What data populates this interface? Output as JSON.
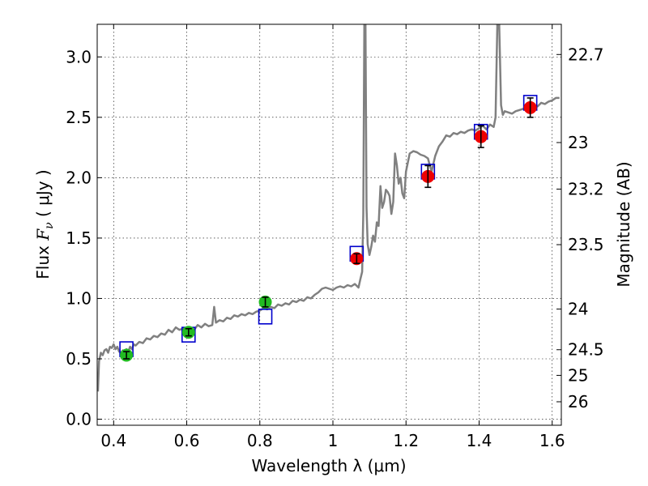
{
  "chart_data": {
    "type": "line",
    "xlabel": "Wavelength  λ (μm)",
    "ylabel": "Flux  F_ν  ( μJy )",
    "ylabel_parts": {
      "prefix": "Flux  ",
      "symbol": "F",
      "subscript": "ν",
      "unit": "  ( μJy )"
    },
    "y2label": "Magnitude (AB)",
    "xlim": [
      0.355,
      1.625
    ],
    "ylim": [
      -0.05,
      3.27
    ],
    "grid": true,
    "x_ticks": [
      {
        "value": 0.4,
        "label": "0.4"
      },
      {
        "value": 0.6,
        "label": "0.6"
      },
      {
        "value": 0.8,
        "label": "0.8"
      },
      {
        "value": 1.0,
        "label": "1"
      },
      {
        "value": 1.2,
        "label": "1.2"
      },
      {
        "value": 1.4,
        "label": "1.4"
      },
      {
        "value": 1.6,
        "label": "1.6"
      }
    ],
    "y_ticks": [
      {
        "value": 0.0,
        "label": "0.0"
      },
      {
        "value": 0.5,
        "label": "0.5"
      },
      {
        "value": 1.0,
        "label": "1.0"
      },
      {
        "value": 1.5,
        "label": "1.5"
      },
      {
        "value": 2.0,
        "label": "2.0"
      },
      {
        "value": 2.5,
        "label": "2.5"
      },
      {
        "value": 3.0,
        "label": "3.0"
      }
    ],
    "y2_ticks": [
      {
        "value": 22.7,
        "label": "22.7"
      },
      {
        "value": 23.0,
        "label": "23"
      },
      {
        "value": 23.2,
        "label": "23.2"
      },
      {
        "value": 23.5,
        "label": "23.5"
      },
      {
        "value": 24.0,
        "label": "24"
      },
      {
        "value": 24.5,
        "label": "24.5"
      },
      {
        "value": 25.0,
        "label": "25"
      },
      {
        "value": 26.0,
        "label": "26"
      }
    ],
    "template_spectrum": {
      "color": "#808080",
      "points": [
        [
          0.357,
          0.23
        ],
        [
          0.36,
          0.48
        ],
        [
          0.365,
          0.55
        ],
        [
          0.37,
          0.53
        ],
        [
          0.375,
          0.57
        ],
        [
          0.38,
          0.58
        ],
        [
          0.385,
          0.55
        ],
        [
          0.39,
          0.6
        ],
        [
          0.395,
          0.59
        ],
        [
          0.4,
          0.62
        ],
        [
          0.405,
          0.58
        ],
        [
          0.41,
          0.6
        ],
        [
          0.415,
          0.56
        ],
        [
          0.42,
          0.55
        ],
        [
          0.425,
          0.57
        ],
        [
          0.43,
          0.54
        ],
        [
          0.435,
          0.58
        ],
        [
          0.44,
          0.56
        ],
        [
          0.445,
          0.6
        ],
        [
          0.45,
          0.58
        ],
        [
          0.455,
          0.62
        ],
        [
          0.46,
          0.61
        ],
        [
          0.47,
          0.64
        ],
        [
          0.48,
          0.63
        ],
        [
          0.49,
          0.67
        ],
        [
          0.5,
          0.66
        ],
        [
          0.51,
          0.69
        ],
        [
          0.52,
          0.68
        ],
        [
          0.53,
          0.71
        ],
        [
          0.54,
          0.7
        ],
        [
          0.55,
          0.74
        ],
        [
          0.56,
          0.72
        ],
        [
          0.57,
          0.76
        ],
        [
          0.58,
          0.74
        ],
        [
          0.59,
          0.75
        ],
        [
          0.6,
          0.73
        ],
        [
          0.61,
          0.76
        ],
        [
          0.62,
          0.74
        ],
        [
          0.63,
          0.78
        ],
        [
          0.64,
          0.76
        ],
        [
          0.65,
          0.79
        ],
        [
          0.66,
          0.77
        ],
        [
          0.67,
          0.78
        ],
        [
          0.675,
          0.93
        ],
        [
          0.68,
          0.8
        ],
        [
          0.69,
          0.82
        ],
        [
          0.7,
          0.81
        ],
        [
          0.71,
          0.84
        ],
        [
          0.72,
          0.83
        ],
        [
          0.73,
          0.86
        ],
        [
          0.74,
          0.85
        ],
        [
          0.75,
          0.87
        ],
        [
          0.76,
          0.86
        ],
        [
          0.77,
          0.88
        ],
        [
          0.78,
          0.87
        ],
        [
          0.79,
          0.89
        ],
        [
          0.8,
          0.9
        ],
        [
          0.81,
          0.92
        ],
        [
          0.82,
          0.91
        ],
        [
          0.83,
          0.93
        ],
        [
          0.84,
          0.92
        ],
        [
          0.85,
          0.95
        ],
        [
          0.86,
          0.94
        ],
        [
          0.87,
          0.96
        ],
        [
          0.88,
          0.95
        ],
        [
          0.89,
          0.98
        ],
        [
          0.9,
          0.97
        ],
        [
          0.91,
          0.99
        ],
        [
          0.92,
          0.98
        ],
        [
          0.93,
          1.01
        ],
        [
          0.94,
          1.0
        ],
        [
          0.95,
          1.03
        ],
        [
          0.96,
          1.05
        ],
        [
          0.97,
          1.08
        ],
        [
          0.98,
          1.09
        ],
        [
          0.99,
          1.08
        ],
        [
          1.0,
          1.07
        ],
        [
          1.01,
          1.09
        ],
        [
          1.02,
          1.1
        ],
        [
          1.03,
          1.09
        ],
        [
          1.04,
          1.11
        ],
        [
          1.05,
          1.1
        ],
        [
          1.06,
          1.12
        ],
        [
          1.07,
          1.09
        ],
        [
          1.075,
          1.16
        ],
        [
          1.08,
          1.22
        ],
        [
          1.083,
          1.7
        ],
        [
          1.086,
          3.27
        ],
        [
          1.089,
          3.27
        ],
        [
          1.092,
          1.75
        ],
        [
          1.095,
          1.45
        ],
        [
          1.1,
          1.36
        ],
        [
          1.105,
          1.43
        ],
        [
          1.11,
          1.52
        ],
        [
          1.115,
          1.47
        ],
        [
          1.12,
          1.63
        ],
        [
          1.125,
          1.6
        ],
        [
          1.13,
          1.93
        ],
        [
          1.135,
          1.75
        ],
        [
          1.14,
          1.8
        ],
        [
          1.145,
          1.9
        ],
        [
          1.15,
          1.88
        ],
        [
          1.155,
          1.85
        ],
        [
          1.16,
          1.7
        ],
        [
          1.165,
          1.8
        ],
        [
          1.17,
          2.2
        ],
        [
          1.175,
          2.1
        ],
        [
          1.18,
          1.95
        ],
        [
          1.185,
          2.0
        ],
        [
          1.19,
          1.87
        ],
        [
          1.195,
          1.83
        ],
        [
          1.2,
          2.05
        ],
        [
          1.21,
          2.2
        ],
        [
          1.22,
          2.22
        ],
        [
          1.23,
          2.21
        ],
        [
          1.24,
          2.19
        ],
        [
          1.25,
          2.18
        ],
        [
          1.26,
          2.16
        ],
        [
          1.27,
          2.05
        ],
        [
          1.28,
          2.18
        ],
        [
          1.29,
          2.26
        ],
        [
          1.3,
          2.3
        ],
        [
          1.31,
          2.35
        ],
        [
          1.32,
          2.34
        ],
        [
          1.33,
          2.37
        ],
        [
          1.34,
          2.36
        ],
        [
          1.35,
          2.38
        ],
        [
          1.36,
          2.37
        ],
        [
          1.37,
          2.39
        ],
        [
          1.38,
          2.4
        ],
        [
          1.39,
          2.39
        ],
        [
          1.4,
          2.41
        ],
        [
          1.41,
          2.43
        ],
        [
          1.42,
          2.4
        ],
        [
          1.43,
          2.44
        ],
        [
          1.44,
          2.42
        ],
        [
          1.445,
          2.5
        ],
        [
          1.45,
          3.27
        ],
        [
          1.455,
          3.27
        ],
        [
          1.46,
          2.6
        ],
        [
          1.465,
          2.52
        ],
        [
          1.47,
          2.55
        ],
        [
          1.48,
          2.54
        ],
        [
          1.49,
          2.53
        ],
        [
          1.5,
          2.55
        ],
        [
          1.51,
          2.56
        ],
        [
          1.52,
          2.57
        ],
        [
          1.53,
          2.58
        ],
        [
          1.54,
          2.58
        ],
        [
          1.55,
          2.6
        ],
        [
          1.56,
          2.59
        ],
        [
          1.57,
          2.62
        ],
        [
          1.58,
          2.61
        ],
        [
          1.59,
          2.63
        ],
        [
          1.6,
          2.64
        ],
        [
          1.61,
          2.66
        ],
        [
          1.62,
          2.66
        ]
      ]
    },
    "model_fluxes": {
      "marker": "open-square",
      "color": "#0000cc",
      "points": [
        [
          0.435,
          0.58
        ],
        [
          0.605,
          0.7
        ],
        [
          0.815,
          0.85
        ],
        [
          1.065,
          1.37
        ],
        [
          1.26,
          2.05
        ],
        [
          1.405,
          2.38
        ],
        [
          1.54,
          2.62
        ]
      ]
    },
    "observed_optical": {
      "color": "#22bb22",
      "points": [
        {
          "x": 0.435,
          "y": 0.53,
          "err": 0.03
        },
        {
          "x": 0.605,
          "y": 0.72,
          "err": 0.03
        },
        {
          "x": 0.815,
          "y": 0.97,
          "err": 0.04
        }
      ]
    },
    "observed_nir": {
      "color": "#ee0000",
      "points": [
        {
          "x": 1.065,
          "y": 1.33,
          "err": 0.04
        },
        {
          "x": 1.26,
          "y": 2.01,
          "err": 0.09
        },
        {
          "x": 1.405,
          "y": 2.34,
          "err": 0.09
        },
        {
          "x": 1.54,
          "y": 2.58,
          "err": 0.08
        }
      ]
    }
  }
}
